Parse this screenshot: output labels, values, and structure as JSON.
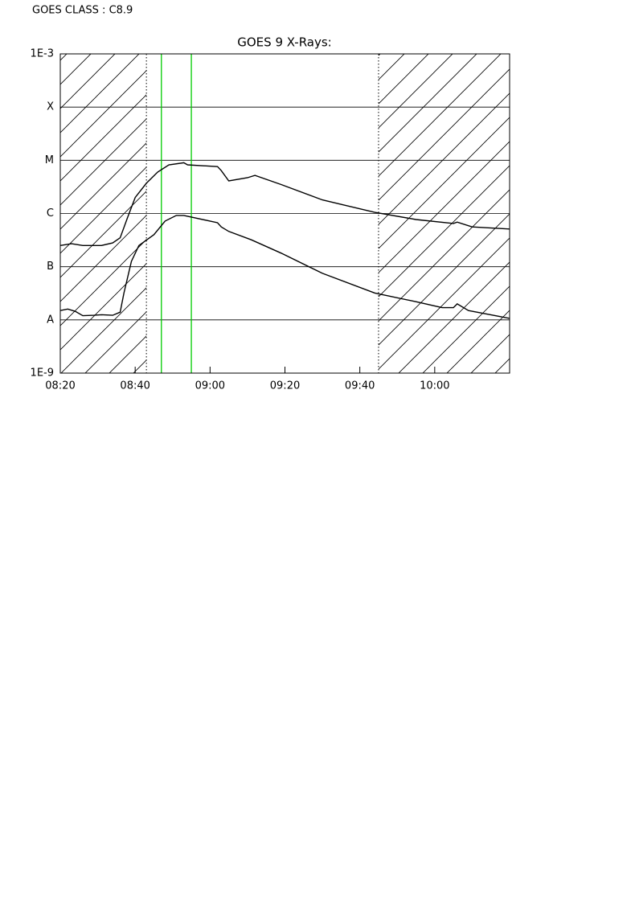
{
  "chart_data": {
    "type": "line",
    "annotation": "GOES CLASS : C8.9",
    "title": "GOES 9 X-Rays:",
    "log_scale_y": true,
    "grid": true,
    "xlim": [
      "08:20",
      "10:20"
    ],
    "xticks": [
      "08:20",
      "08:40",
      "09:00",
      "09:20",
      "09:40",
      "10:00"
    ],
    "ylim": [
      1e-09,
      0.001
    ],
    "yticks": [
      {
        "value": 1e-09,
        "label": "1E-9"
      },
      {
        "value": 1e-08,
        "label": "A"
      },
      {
        "value": 1e-07,
        "label": "B"
      },
      {
        "value": 1e-06,
        "label": "C"
      },
      {
        "value": 1e-05,
        "label": "M"
      },
      {
        "value": 0.0001,
        "label": "X"
      },
      {
        "value": 0.001,
        "label": "1E-3"
      }
    ],
    "hatched_until": "08:43",
    "hatched_from": "09:45",
    "dotted_lines": [
      "08:43",
      "09:45"
    ],
    "green_lines": [
      "08:47",
      "08:55"
    ],
    "green_color": "#00cc00",
    "series": [
      {
        "color": "#000000",
        "x": [
          "08:20",
          "08:23",
          "08:26",
          "08:31",
          "08:34",
          "08:36",
          "08:38",
          "08:40",
          "08:43",
          "08:46",
          "08:49",
          "08:53",
          "08:54",
          "09:02",
          "09:03",
          "09:05",
          "09:10",
          "09:12",
          "09:19",
          "09:30",
          "09:44",
          "09:55",
          "10:05",
          "10:06",
          "10:10",
          "10:20"
        ],
        "values": [
          2.5e-07,
          2.7e-07,
          2.5e-07,
          2.5e-07,
          2.8e-07,
          3.5e-07,
          8.5e-07,
          2e-06,
          3.7e-06,
          6e-06,
          8.2e-06,
          9e-06,
          8.2e-06,
          7.6e-06,
          6.4e-06,
          4.1e-06,
          4.7e-06,
          5.2e-06,
          3.5e-06,
          1.8e-06,
          1.05e-06,
          7.7e-07,
          6.5e-07,
          6.9e-07,
          5.6e-07,
          5.1e-07
        ]
      },
      {
        "color": "#000000",
        "x": [
          "08:20",
          "08:22",
          "08:24",
          "08:26",
          "08:29",
          "08:31",
          "08:34",
          "08:36",
          "08:37",
          "08:39",
          "08:41",
          "08:45",
          "08:48",
          "08:51",
          "08:53",
          "09:02",
          "09:03",
          "09:05",
          "09:11",
          "09:19",
          "09:30",
          "09:44",
          "09:55",
          "10:02",
          "10:05",
          "10:06",
          "10:09",
          "10:20"
        ],
        "values": [
          1.5e-08,
          1.6e-08,
          1.45e-08,
          1.2e-08,
          1.22e-08,
          1.25e-08,
          1.22e-08,
          1.4e-08,
          3.2e-08,
          1.26e-07,
          2.5e-07,
          4e-07,
          7.2e-07,
          9.2e-07,
          9.2e-07,
          6.7e-07,
          5.6e-07,
          4.6e-07,
          3.2e-07,
          1.8e-07,
          7.5e-08,
          3.2e-08,
          2.2e-08,
          1.7e-08,
          1.7e-08,
          2e-08,
          1.5e-08,
          1.07e-08
        ]
      }
    ]
  }
}
